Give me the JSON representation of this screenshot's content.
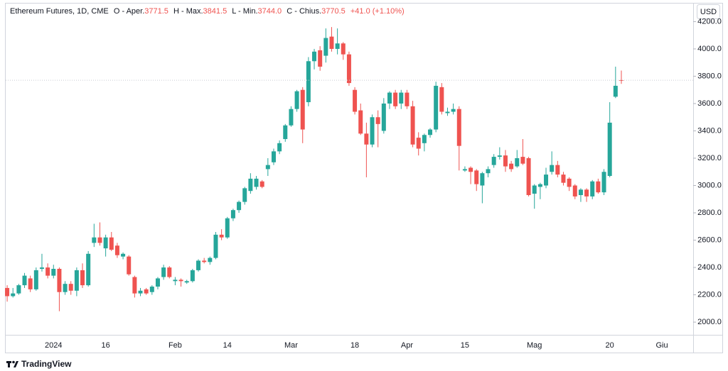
{
  "chart_data": {
    "type": "candlestick",
    "title": "Ethereum Futures, 1D, CME",
    "ohlc_legend": {
      "open_label": "O - Aper.",
      "open": "3771.5",
      "high_label": "H - Max.",
      "high": "3841.5",
      "low_label": "L - Min.",
      "low": "3744.0",
      "close_label": "C - Chius.",
      "close": "3770.5",
      "change": "+41.0 (+1.10%)"
    },
    "currency": "USD",
    "brand": "TradingView",
    "categories": [
      null,
      null,
      null,
      null,
      null,
      null,
      null,
      null,
      "2024",
      null,
      null,
      null,
      null,
      null,
      null,
      null,
      null,
      "16",
      null,
      null,
      null,
      null,
      null,
      null,
      null,
      null,
      null,
      null,
      null,
      "Feb",
      null,
      null,
      null,
      null,
      null,
      null,
      null,
      null,
      "14",
      null,
      null,
      null,
      null,
      null,
      null,
      null,
      null,
      null,
      null,
      "Mar",
      null,
      null,
      null,
      null,
      null,
      null,
      null,
      null,
      null,
      null,
      "18",
      null,
      null,
      null,
      null,
      null,
      null,
      null,
      null,
      "Apr",
      null,
      null,
      null,
      null,
      null,
      null,
      null,
      null,
      null,
      "15",
      null,
      null,
      null,
      null,
      null,
      null,
      null,
      null,
      null,
      null,
      null,
      "Mag",
      null,
      null,
      null,
      null,
      null,
      null,
      null,
      null,
      null,
      null,
      null,
      null,
      "20",
      null,
      null,
      null,
      null,
      null,
      null,
      null,
      null,
      "Giu"
    ],
    "open": [
      2250,
      2190,
      2210,
      2270,
      2320,
      2240,
      2390,
      2400,
      2340,
      2390,
      2220,
      2280,
      2230,
      2380,
      2270,
      2580,
      2620,
      2540,
      2620,
      2560,
      2480,
      2480,
      2330,
      2210,
      2240,
      2220,
      2260,
      2330,
      2400,
      2300,
      2310,
      2290,
      2300,
      2380,
      2450,
      2440,
      2470,
      2640,
      2620,
      2760,
      2820,
      2880,
      2960,
      2990,
      3030,
      3120,
      3170,
      3250,
      3340,
      3440,
      3560,
      3700,
      3610,
      3910,
      3990,
      3950,
      4090,
      4000,
      4040,
      3960,
      3700,
      3550,
      3380,
      3300,
      3500,
      3400,
      3600,
      3680,
      3600,
      3680,
      3580,
      3350,
      3310,
      3370,
      3410,
      3720,
      3530,
      3540,
      3560,
      3110,
      3130,
      3110,
      3000,
      3090,
      3150,
      3210,
      3220,
      3160,
      3140,
      3210,
      3200,
      2940,
      2990,
      3000,
      3100,
      3150,
      3080,
      3050,
      3000,
      2930,
      2970,
      2920,
      3030,
      2950,
      3070,
      3650,
      3771.5,
      null,
      null,
      null,
      null,
      null,
      null,
      null
    ],
    "high": [
      2270,
      2250,
      2280,
      2360,
      2340,
      2400,
      2500,
      2430,
      2420,
      2400,
      2300,
      2300,
      2400,
      2430,
      2520,
      2720,
      2730,
      2640,
      2660,
      2580,
      2510,
      2490,
      2340,
      2250,
      2250,
      2270,
      2330,
      2420,
      2410,
      2330,
      2320,
      2310,
      2390,
      2460,
      2470,
      2480,
      2660,
      2680,
      2770,
      2830,
      2890,
      2990,
      3090,
      3070,
      3040,
      3200,
      3270,
      3330,
      3450,
      3580,
      3700,
      3720,
      3940,
      4000,
      4020,
      4150,
      4160,
      4150,
      4050,
      3980,
      3720,
      3600,
      3460,
      3520,
      3550,
      3640,
      3690,
      3700,
      3700,
      3700,
      3620,
      3390,
      3380,
      3420,
      3760,
      3750,
      3570,
      3600,
      3580,
      3140,
      3140,
      3120,
      3100,
      3140,
      3230,
      3280,
      3260,
      3180,
      3260,
      3340,
      3210,
      3010,
      3020,
      3130,
      3250,
      3180,
      3100,
      3060,
      3010,
      2980,
      2980,
      3040,
      3050,
      3120,
      3610,
      3870,
      3841.5,
      null,
      null,
      null,
      null,
      null,
      null,
      null
    ],
    "low": [
      2150,
      2180,
      2200,
      2250,
      2220,
      2230,
      2370,
      2320,
      2320,
      2080,
      2200,
      2200,
      2190,
      2250,
      2260,
      2550,
      2560,
      2480,
      2520,
      2470,
      2460,
      2340,
      2180,
      2190,
      2200,
      2200,
      2240,
      2310,
      2320,
      2270,
      2260,
      2280,
      2290,
      2370,
      2430,
      2420,
      2460,
      2600,
      2610,
      2740,
      2800,
      2860,
      2940,
      2970,
      2980,
      3070,
      3150,
      3230,
      3320,
      3430,
      3540,
      3310,
      3580,
      3850,
      3840,
      3900,
      3980,
      3960,
      3920,
      3730,
      3520,
      3370,
      3060,
      3280,
      3280,
      3380,
      3560,
      3560,
      3560,
      3560,
      3280,
      3220,
      3250,
      3350,
      3390,
      3520,
      3510,
      3520,
      3110,
      3100,
      3010,
      2960,
      2870,
      3060,
      3130,
      3190,
      3100,
      3100,
      3130,
      3150,
      2920,
      2830,
      2900,
      2980,
      3080,
      3060,
      3000,
      2960,
      2900,
      2880,
      2880,
      2900,
      2940,
      2930,
      3060,
      3640,
      3744,
      null,
      null,
      null,
      null,
      null,
      null,
      null
    ],
    "close": [
      2190,
      2210,
      2270,
      2340,
      2240,
      2380,
      2400,
      2340,
      2390,
      2220,
      2280,
      2230,
      2380,
      2270,
      2500,
      2620,
      2580,
      2620,
      2530,
      2490,
      2500,
      2350,
      2210,
      2230,
      2210,
      2260,
      2320,
      2400,
      2330,
      2310,
      2300,
      2300,
      2380,
      2450,
      2440,
      2470,
      2640,
      2620,
      2760,
      2820,
      2880,
      2980,
      3050,
      3050,
      2990,
      3150,
      3250,
      3310,
      3440,
      3560,
      3690,
      3410,
      3910,
      3980,
      3870,
      4080,
      4000,
      4040,
      3960,
      3750,
      3540,
      3380,
      3300,
      3500,
      3450,
      3600,
      3680,
      3580,
      3680,
      3580,
      3300,
      3270,
      3370,
      3410,
      3730,
      3540,
      3540,
      3560,
      3290,
      3120,
      3100,
      3010,
      3090,
      3120,
      3210,
      3220,
      3140,
      3120,
      3200,
      3160,
      2930,
      3000,
      3010,
      3080,
      3150,
      3080,
      3020,
      2990,
      2920,
      2970,
      2920,
      3030,
      2950,
      3100,
      3460,
      3730,
      3770.5,
      null,
      null,
      null,
      null,
      null,
      null,
      null
    ],
    "up_color": "#26a69a",
    "down_color": "#ef5350",
    "ylim": [
      1907,
      4332
    ],
    "yticks": [
      {
        "value": 2000,
        "label": "2000.0"
      },
      {
        "value": 2200,
        "label": "2200.0"
      },
      {
        "value": 2400,
        "label": "2400.0"
      },
      {
        "value": 2600,
        "label": "2600.0"
      },
      {
        "value": 2800,
        "label": "2800.0"
      },
      {
        "value": 3000,
        "label": "3000.0"
      },
      {
        "value": 3200,
        "label": "3200.0"
      },
      {
        "value": 3400,
        "label": "3400.0"
      },
      {
        "value": 3600,
        "label": "3600.0"
      },
      {
        "value": 3800,
        "label": "3800.0"
      },
      {
        "value": 4000,
        "label": "4000.0"
      },
      {
        "value": 4200,
        "label": "4200.0"
      }
    ],
    "grid": false,
    "last_price_line": true
  }
}
